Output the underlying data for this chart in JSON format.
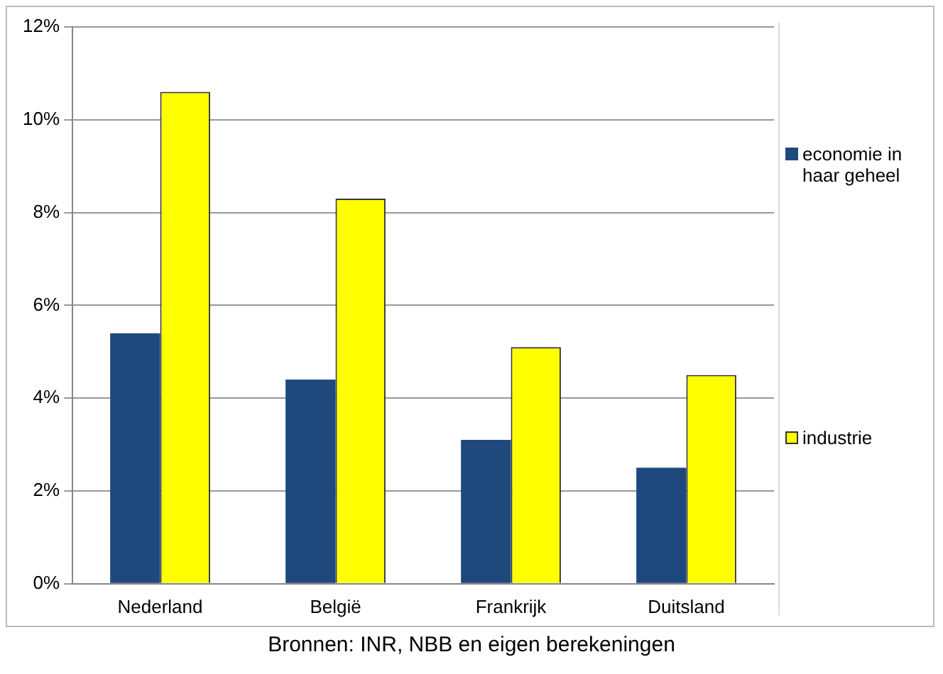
{
  "chart_data": {
    "type": "bar",
    "categories": [
      "Nederland",
      "België",
      "Frankrijk",
      "Duitsland"
    ],
    "series": [
      {
        "name": "economie in haar geheel",
        "color": "#1f497d",
        "values": [
          5.4,
          4.4,
          3.1,
          2.5
        ]
      },
      {
        "name": "industrie",
        "color": "#ffff00",
        "values": [
          10.6,
          8.3,
          5.1,
          4.5
        ]
      }
    ],
    "ylim": [
      0,
      12
    ],
    "yticks": [
      {
        "value": 0,
        "label": "0%"
      },
      {
        "value": 2,
        "label": "2%"
      },
      {
        "value": 4,
        "label": "4%"
      },
      {
        "value": 6,
        "label": "6%"
      },
      {
        "value": 8,
        "label": "8%"
      },
      {
        "value": 10,
        "label": "10%"
      },
      {
        "value": 12,
        "label": "12%"
      }
    ],
    "grid": "y",
    "legend": "right",
    "annotations": [
      "Bronnen: INR, NBB en eigen berekeningen"
    ]
  }
}
